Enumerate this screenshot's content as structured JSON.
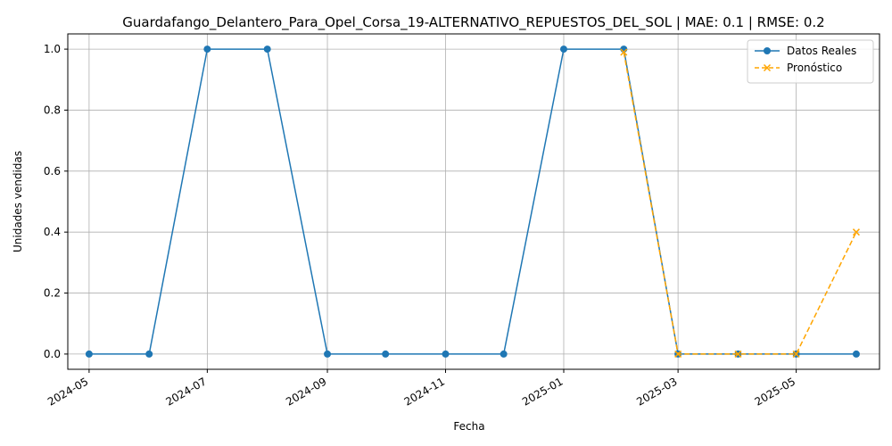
{
  "chart_data": {
    "type": "line",
    "title": "Guardafango_Delantero_Para_Opel_Corsa_19-ALTERNATIVO_REPUESTOS_DEL_SOL | MAE: 0.1 | RMSE: 0.2",
    "xlabel": "Fecha",
    "ylabel": "Unidades vendidas",
    "ylim": [
      -0.05,
      1.05
    ],
    "xlim": [
      "2024-04-20",
      "2025-06-13"
    ],
    "x_ticks": [
      "2024-05",
      "2024-07",
      "2024-09",
      "2024-11",
      "2025-01",
      "2025-03",
      "2025-05"
    ],
    "y_ticks": [
      "0.0",
      "0.2",
      "0.4",
      "0.6",
      "0.8",
      "1.0"
    ],
    "grid": true,
    "legend_position": "top-right",
    "series": [
      {
        "name": "Datos Reales",
        "color": "#1f77b4",
        "line_style": "solid",
        "marker": "circle",
        "x": [
          "2024-05-01",
          "2024-06-01",
          "2024-07-01",
          "2024-08-01",
          "2024-09-01",
          "2024-10-01",
          "2024-11-01",
          "2024-12-01",
          "2025-01-01",
          "2025-02-01",
          "2025-03-01",
          "2025-04-01",
          "2025-05-01",
          "2025-06-01"
        ],
        "values": [
          0,
          0,
          1,
          1,
          0,
          0,
          0,
          0,
          1,
          1,
          0,
          0,
          0,
          0
        ]
      },
      {
        "name": "Pronóstico",
        "color": "#ffa500",
        "line_style": "dashed",
        "marker": "x",
        "x": [
          "2025-02-01",
          "2025-03-01",
          "2025-04-01",
          "2025-05-01",
          "2025-06-01"
        ],
        "values": [
          0.99,
          0.0,
          0.0,
          0.0,
          0.4
        ]
      }
    ]
  }
}
